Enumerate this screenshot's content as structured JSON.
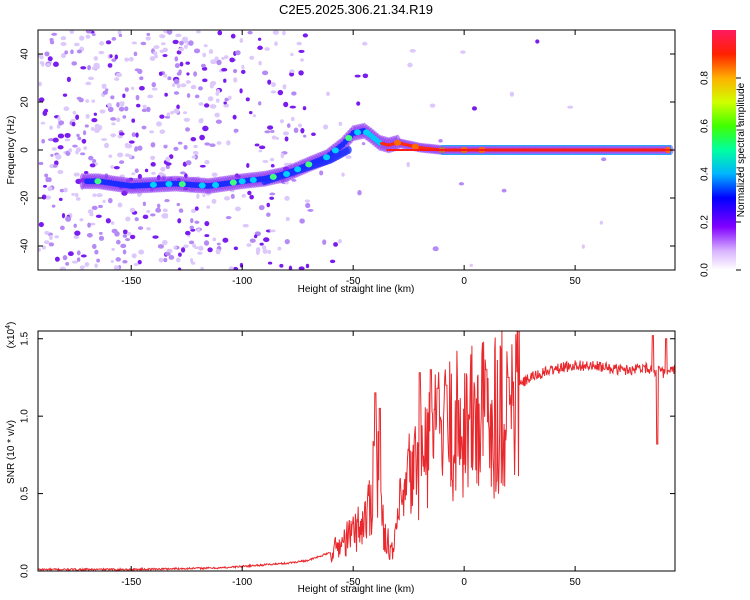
{
  "title": "C2E5.2025.306.21.34.R19",
  "chart_data": [
    {
      "type": "heatmap",
      "id": "spectrogram",
      "xlabel": "Height of straight line (km)",
      "ylabel": "Frequency (Hz)",
      "xlim": [
        -192,
        95
      ],
      "ylim": [
        -50,
        50
      ],
      "xticks": [
        -150,
        -100,
        -50,
        0,
        50
      ],
      "yticks": [
        -40,
        -20,
        0,
        20,
        40
      ],
      "ridge_frequency_hz": {
        "x": [
          -165,
          -150,
          -130,
          -115,
          -100,
          -90,
          -80,
          -70,
          -62,
          -55,
          -50,
          -45,
          -42,
          -38,
          -34,
          -30,
          -25,
          -20,
          -15,
          -10,
          0,
          20,
          50,
          92
        ],
        "y": [
          -13,
          -15,
          -14,
          -15,
          -13,
          -12,
          -10,
          -6,
          -3,
          2,
          7,
          8,
          6,
          3,
          2,
          3,
          2,
          1,
          0.5,
          0,
          0,
          0,
          0,
          0
        ]
      },
      "branch_frequency_hz": {
        "x": [
          -90,
          -80,
          -70,
          -60,
          -52
        ],
        "y": [
          -13,
          -10,
          -7,
          -4,
          0
        ]
      },
      "colorbar": {
        "label": "Normalized spectral amplitude",
        "range": [
          0,
          1
        ],
        "ticks": [
          0.0,
          0.2,
          0.4,
          0.6,
          0.8
        ]
      }
    },
    {
      "type": "line",
      "id": "snr",
      "xlabel": "Height of straight line (km)",
      "ylabel": "SNR (10 * v/v)",
      "scale_note_prefix": "(x10",
      "scale_note_exp": "4",
      "scale_note_suffix": ")",
      "xlim": [
        -192,
        95
      ],
      "ylim": [
        0,
        1.55
      ],
      "xticks": [
        -150,
        -100,
        -50,
        0,
        50
      ],
      "yticks": [
        0.0,
        0.5,
        1.0,
        1.5
      ],
      "series_color": "#e8282c",
      "envelope": {
        "x": [
          -192,
          -150,
          -110,
          -100,
          -90,
          -80,
          -70,
          -60,
          -55,
          -50,
          -45,
          -42,
          -40,
          -37,
          -35,
          -32,
          -30,
          -27,
          -25,
          -22,
          -20,
          -17,
          -15,
          -12,
          -10,
          -5,
          0,
          5,
          10,
          15,
          20,
          25,
          30,
          40,
          50,
          60,
          70,
          75,
          80,
          85,
          90,
          95
        ],
        "y": [
          0.01,
          0.01,
          0.02,
          0.03,
          0.04,
          0.05,
          0.07,
          0.12,
          0.18,
          0.25,
          0.32,
          0.45,
          0.85,
          0.3,
          0.22,
          0.1,
          0.35,
          0.45,
          0.6,
          0.65,
          0.72,
          0.78,
          0.8,
          0.85,
          0.88,
          0.92,
          0.95,
          0.98,
          1.0,
          1.05,
          1.1,
          1.2,
          1.25,
          1.3,
          1.33,
          1.32,
          1.3,
          1.3,
          1.32,
          1.3,
          1.28,
          1.3
        ]
      },
      "spikes": {
        "x": [
          -40,
          -38,
          -20,
          -15,
          -12,
          -8,
          10,
          20,
          85,
          87,
          91
        ],
        "y": [
          1.15,
          1.05,
          1.28,
          1.3,
          1.18,
          1.2,
          1.3,
          1.25,
          1.52,
          0.82,
          1.5
        ]
      }
    }
  ]
}
